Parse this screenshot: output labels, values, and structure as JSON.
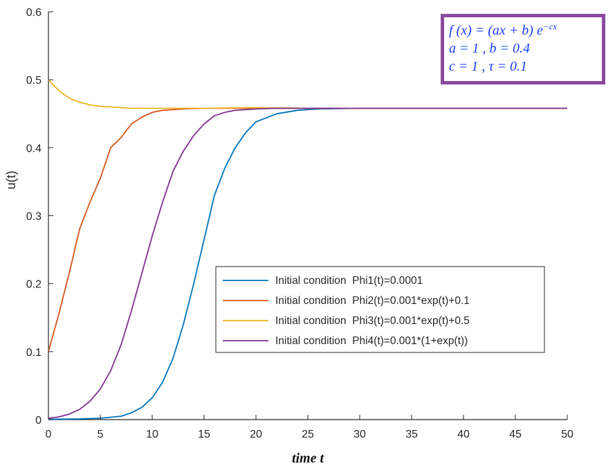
{
  "chart_data": {
    "type": "line",
    "xlabel": "time t",
    "ylabel": "u(t)",
    "xlim": [
      0,
      50
    ],
    "ylim": [
      0,
      0.6
    ],
    "xticks": [
      0,
      5,
      10,
      15,
      20,
      25,
      30,
      35,
      40,
      45,
      50
    ],
    "yticks": [
      0,
      0.1,
      0.2,
      0.3,
      0.4,
      0.5,
      0.6
    ],
    "grid": false,
    "legend_position": "lower-right",
    "series": [
      {
        "name": "Initial condition  Phi1(t)=0.0001",
        "color": "#0072BD",
        "x": [
          0,
          3,
          5,
          7,
          8,
          9,
          10,
          11,
          12,
          13,
          14,
          15,
          16,
          17,
          18,
          19,
          20,
          22,
          24,
          26,
          30,
          35,
          40,
          50
        ],
        "y": [
          0.0005,
          0.001,
          0.002,
          0.005,
          0.01,
          0.018,
          0.032,
          0.055,
          0.09,
          0.14,
          0.2,
          0.265,
          0.33,
          0.37,
          0.4,
          0.422,
          0.438,
          0.45,
          0.455,
          0.457,
          0.458,
          0.458,
          0.458,
          0.458
        ]
      },
      {
        "name": "Initial condition  Phi2(t)=0.001*exp(t)+0.1",
        "color": "#D95319",
        "x": [
          0,
          1,
          2,
          3,
          4,
          5,
          6,
          7,
          8,
          9,
          10,
          11,
          12,
          13,
          15,
          18,
          20,
          25,
          30,
          40,
          50
        ],
        "y": [
          0.1,
          0.155,
          0.215,
          0.28,
          0.32,
          0.355,
          0.4,
          0.415,
          0.435,
          0.445,
          0.452,
          0.455,
          0.456,
          0.457,
          0.458,
          0.458,
          0.458,
          0.458,
          0.458,
          0.458,
          0.458
        ]
      },
      {
        "name": "Initial condition  Phi3(t)=0.001*exp(t)+0.5",
        "color": "#EDB120",
        "x": [
          0,
          1,
          2,
          3,
          4,
          5,
          6,
          7,
          8,
          10,
          15,
          20,
          25,
          30,
          40,
          50
        ],
        "y": [
          0.5,
          0.484,
          0.473,
          0.467,
          0.463,
          0.461,
          0.46,
          0.459,
          0.458,
          0.458,
          0.458,
          0.459,
          0.458,
          0.458,
          0.458,
          0.458
        ]
      },
      {
        "name": "Initial condition  Phi4(t)=0.001*(1+exp(t))",
        "color": "#7E2F8E",
        "x": [
          0,
          1,
          2,
          3,
          4,
          5,
          6,
          7,
          8,
          9,
          10,
          11,
          12,
          13,
          14,
          15,
          16,
          17,
          18,
          20,
          22,
          25,
          30,
          40,
          50
        ],
        "y": [
          0.002,
          0.004,
          0.008,
          0.015,
          0.027,
          0.045,
          0.072,
          0.11,
          0.16,
          0.215,
          0.27,
          0.32,
          0.365,
          0.395,
          0.418,
          0.435,
          0.447,
          0.452,
          0.455,
          0.457,
          0.458,
          0.458,
          0.458,
          0.458,
          0.458
        ]
      }
    ]
  },
  "formula": {
    "line1_pre": "f (x) = (ax + b) e",
    "line1_exp": "−cx",
    "line2": "a = 1 , b = 0.4",
    "line3": "c = 1 , τ = 0.1"
  }
}
